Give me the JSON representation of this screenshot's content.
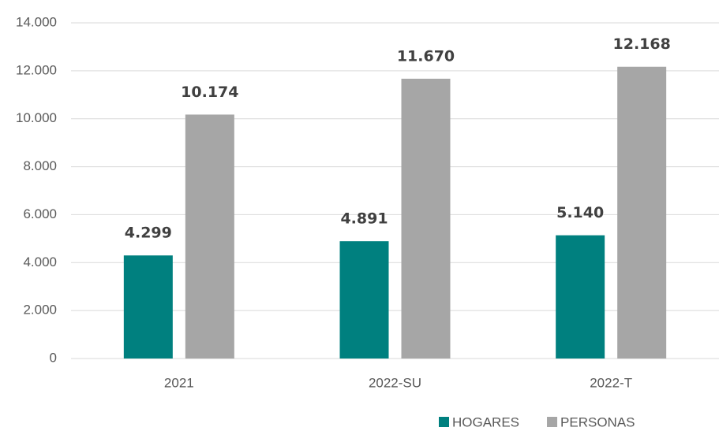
{
  "chart_data": {
    "type": "bar",
    "categories": [
      "2021",
      "2022-SU",
      "2022-T"
    ],
    "series": [
      {
        "name": "HOGARES",
        "color": "#00807f",
        "values": [
          4299,
          4891,
          5140
        ],
        "value_labels": [
          "4.299",
          "4.891",
          "5.140"
        ]
      },
      {
        "name": "PERSONAS",
        "color": "#a6a6a6",
        "values": [
          10174,
          11670,
          12168
        ],
        "value_labels": [
          "10.174",
          "11.670",
          "12.168"
        ]
      }
    ],
    "ylim": [
      0,
      14000
    ],
    "yticks": [
      0,
      {
        "value": 2000,
        "label": "2.000"
      },
      {
        "value": 4000,
        "label": "4.000"
      },
      {
        "value": 6000,
        "label": "6.000"
      },
      {
        "value": 8000,
        "label": "8.000"
      },
      {
        "value": 10000,
        "label": "10.000"
      },
      {
        "value": 12000,
        "label": "12.000"
      },
      {
        "value": 14000,
        "label": "14.000"
      }
    ],
    "grid": true,
    "legend": "bottom-right"
  }
}
